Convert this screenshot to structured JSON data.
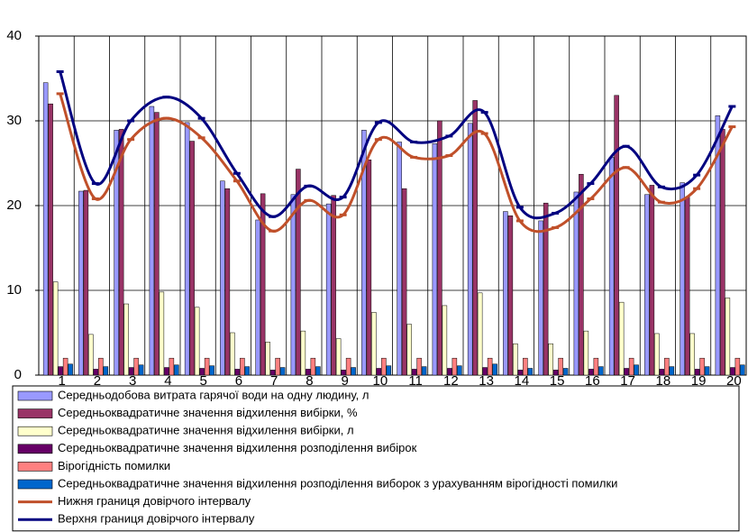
{
  "chart_data": {
    "type": "bar",
    "categories": [
      "1",
      "2",
      "3",
      "4",
      "5",
      "6",
      "7",
      "8",
      "9",
      "10",
      "11",
      "12",
      "13",
      "14",
      "15",
      "16",
      "17",
      "18",
      "19",
      "20"
    ],
    "series": [
      {
        "name": "Середньодобова витрата гарячої води на одну людину, л",
        "color": "#9999ff",
        "type": "bar",
        "values": [
          34.5,
          21.7,
          28.9,
          31.7,
          29.8,
          22.9,
          18.3,
          21.3,
          20.2,
          28.9,
          27.5,
          27.3,
          29.7,
          19.3,
          18.2,
          21.6,
          25.7,
          21.3,
          22.7,
          30.6
        ]
      },
      {
        "name": "Середньоквадратичне значення відхилення вибірки, %",
        "color": "#993366",
        "type": "bar",
        "values": [
          32,
          21.8,
          29,
          31,
          27.6,
          22,
          21.4,
          24.3,
          21.2,
          25.4,
          22,
          30,
          32.4,
          18.8,
          20.3,
          23.7,
          33,
          22.4,
          21,
          29
        ]
      },
      {
        "name": "Середньоквадратичне значення відхилення вибірки, л",
        "color": "#ffffcc",
        "type": "bar",
        "values": [
          11,
          4.8,
          8.4,
          9.8,
          8,
          5,
          3.9,
          5.2,
          4.3,
          7.4,
          6,
          8.2,
          9.7,
          3.7,
          3.7,
          5.2,
          8.6,
          4.9,
          4.9,
          9.1
        ]
      },
      {
        "name": "Середньоквадратичне значення відхилення розподілення вибірок",
        "color": "#660066",
        "type": "bar",
        "values": [
          1,
          0.7,
          0.9,
          0.9,
          0.8,
          0.7,
          0.6,
          0.7,
          0.6,
          0.8,
          0.7,
          0.8,
          0.9,
          0.6,
          0.6,
          0.7,
          0.8,
          0.7,
          0.7,
          0.9
        ]
      },
      {
        "name": "Вірогідність помилки",
        "color": "#ff8080",
        "type": "bar",
        "values": [
          2,
          2,
          2,
          2,
          2,
          2,
          2,
          2,
          2,
          2,
          2,
          2,
          2,
          2,
          2,
          2,
          2,
          2,
          2,
          2
        ]
      },
      {
        "name": "Середньоквадратичне значення відхилення розподілення виборок з урахуванням вірогідності помилки",
        "color": "#0066cc",
        "type": "bar",
        "values": [
          1.3,
          1,
          1.2,
          1.2,
          1.1,
          1,
          0.9,
          1,
          0.9,
          1.1,
          1,
          1.1,
          1.3,
          0.8,
          0.8,
          1,
          1.2,
          1,
          1,
          1.2
        ]
      },
      {
        "name": "Нижня границя довірчого інтервалу",
        "color": "#c0502a",
        "type": "line",
        "values": [
          33.2,
          20.8,
          27.8,
          30.3,
          28,
          22.9,
          17,
          20.6,
          18.9,
          27.8,
          25.7,
          25.9,
          28.5,
          18.2,
          17.4,
          20.8,
          24.5,
          20.4,
          22,
          29.3
        ]
      },
      {
        "name": "Верхня границя довірчого інтервалу",
        "color": "#000080",
        "type": "line",
        "values": [
          35.8,
          22.6,
          30,
          32.8,
          30.3,
          23.8,
          18.7,
          22.3,
          21,
          29.8,
          27.5,
          28.2,
          31,
          19.8,
          19.1,
          22.6,
          27,
          22.2,
          23.6,
          31.7
        ]
      }
    ],
    "ylim": [
      0,
      40
    ],
    "yticks": [
      0,
      10,
      20,
      30,
      40
    ],
    "grid": true,
    "legend": "bottom"
  }
}
